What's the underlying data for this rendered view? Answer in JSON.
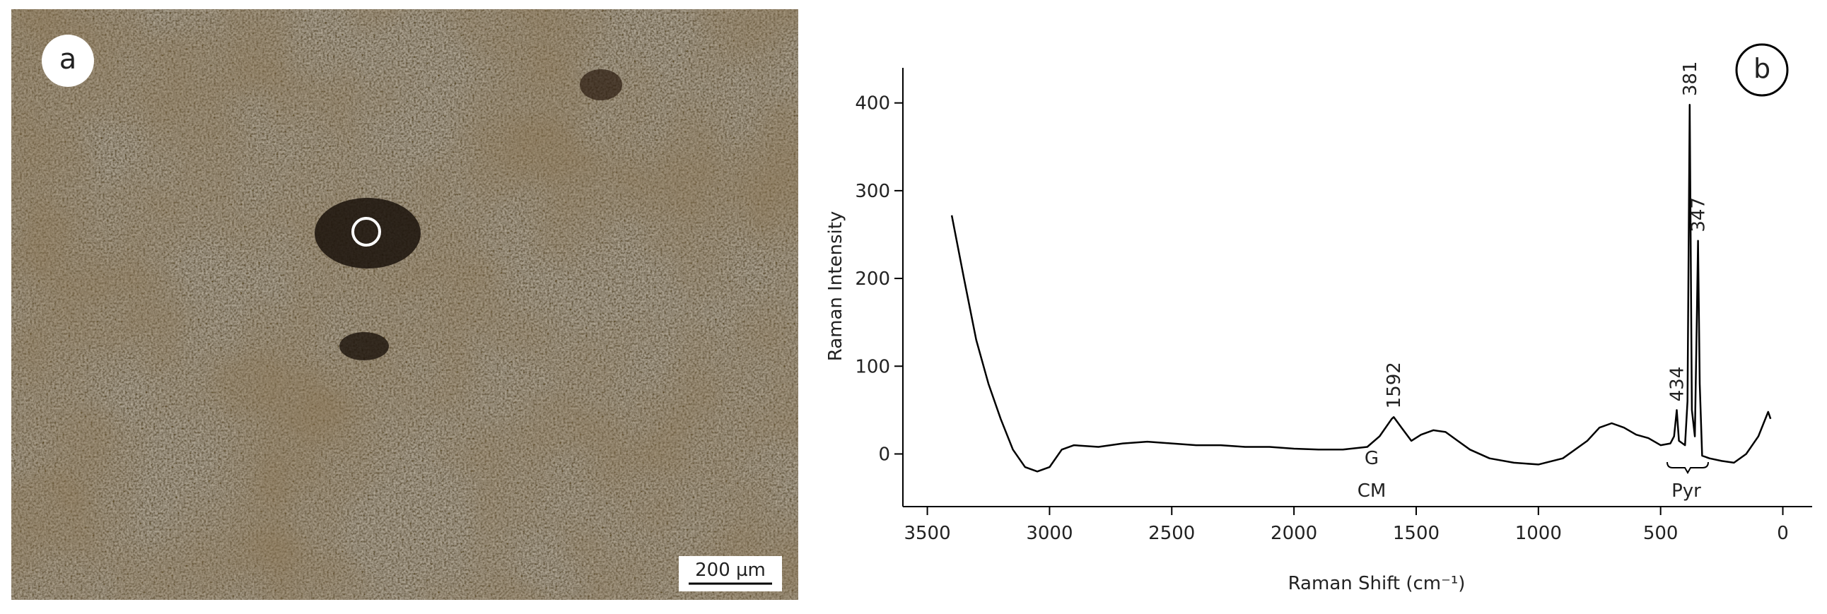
{
  "panel_a": {
    "label": "a",
    "scale_bar": "200 µm"
  },
  "chart_data": {
    "type": "line",
    "label": "b",
    "xlabel": "Raman Shift (cm⁻¹)",
    "ylabel": "Raman Intensity",
    "x": [
      3400,
      3350,
      3300,
      3250,
      3200,
      3150,
      3100,
      3050,
      3000,
      2950,
      2900,
      2800,
      2700,
      2600,
      2500,
      2400,
      2300,
      2200,
      2100,
      2000,
      1900,
      1800,
      1700,
      1650,
      1600,
      1592,
      1560,
      1520,
      1480,
      1430,
      1380,
      1330,
      1280,
      1200,
      1100,
      1000,
      900,
      800,
      750,
      700,
      650,
      600,
      550,
      500,
      460,
      445,
      434,
      425,
      400,
      390,
      381,
      372,
      360,
      352,
      347,
      340,
      330,
      300,
      250,
      200,
      150,
      100,
      60,
      50
    ],
    "series": [
      {
        "color": "#000000",
        "values": [
          272,
          200,
          130,
          80,
          40,
          5,
          -15,
          -20,
          -15,
          5,
          10,
          8,
          12,
          14,
          12,
          10,
          10,
          8,
          8,
          6,
          5,
          5,
          8,
          20,
          40,
          42,
          30,
          15,
          22,
          27,
          25,
          15,
          5,
          -5,
          -10,
          -12,
          -5,
          15,
          30,
          35,
          30,
          22,
          18,
          10,
          12,
          20,
          50,
          15,
          10,
          60,
          398,
          50,
          20,
          150,
          243,
          80,
          -2,
          -5,
          -8,
          -10,
          0,
          20,
          48,
          40
        ]
      }
    ],
    "peaks": [
      {
        "x": 1592,
        "y": 42
      },
      {
        "x": 434,
        "y": 50
      },
      {
        "x": 381,
        "y": 398
      },
      {
        "x": 347,
        "y": 243
      }
    ],
    "annotations": [
      "G",
      "CM",
      "Pyr"
    ],
    "xlim": [
      3600,
      -120
    ],
    "ylim": [
      -60,
      440
    ],
    "xticks": [
      3500,
      3000,
      2500,
      2000,
      1500,
      1000,
      500,
      0
    ],
    "yticks": [
      0,
      100,
      200,
      300,
      400
    ]
  }
}
